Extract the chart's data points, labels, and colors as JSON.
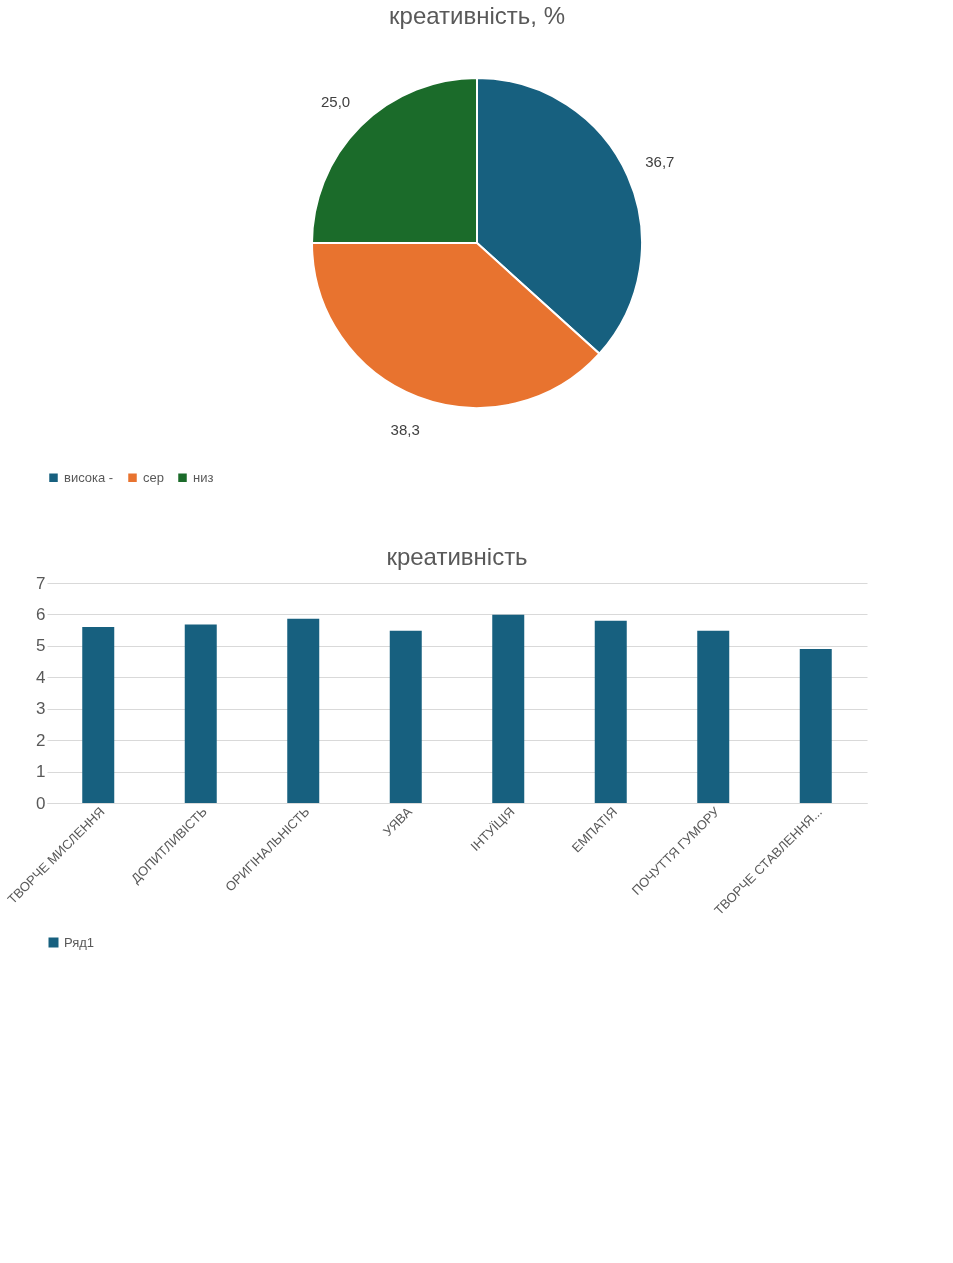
{
  "chart_data": [
    {
      "type": "pie",
      "title": "креативність, %",
      "categories": [
        "висока -",
        "сер",
        "низ"
      ],
      "values": [
        36.7,
        38.3,
        25.0
      ],
      "colors": [
        "#17607f",
        "#e8732f",
        "#1b6b2a"
      ],
      "value_labels": [
        "36,7",
        "38,3",
        "25,0"
      ],
      "legend": "bottom"
    },
    {
      "type": "bar",
      "title": "креативність",
      "categories": [
        "ТВОРЧЕ МИСЛЕННЯ",
        "ДОПИТЛИВІСТЬ",
        "ОРИГІНАЛЬНІСТЬ",
        "УЯВА",
        "ІНТУЇЦІЯ",
        "ЕМПАТІЯ",
        "ПОЧУТТЯ ГУМОРУ",
        "ТВОРЧЕ СТАВЛЕННЯ..."
      ],
      "series": [
        {
          "name": "Ряд1",
          "color": "#17607f",
          "values": [
            5.6,
            5.68,
            5.86,
            5.48,
            5.99,
            5.8,
            5.48,
            4.9
          ]
        }
      ],
      "ylim": [
        0,
        7
      ],
      "yticks": [
        0,
        1,
        2,
        3,
        4,
        5,
        6,
        7
      ],
      "grid": "y",
      "legend": "bottom"
    }
  ]
}
